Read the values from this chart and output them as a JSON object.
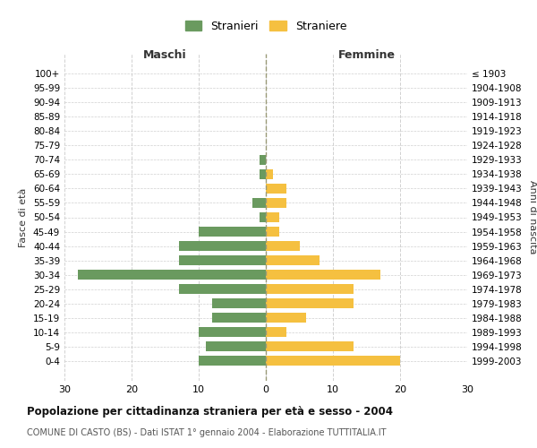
{
  "age_groups": [
    "100+",
    "95-99",
    "90-94",
    "85-89",
    "80-84",
    "75-79",
    "70-74",
    "65-69",
    "60-64",
    "55-59",
    "50-54",
    "45-49",
    "40-44",
    "35-39",
    "30-34",
    "25-29",
    "20-24",
    "15-19",
    "10-14",
    "5-9",
    "0-4"
  ],
  "birth_years": [
    "≤ 1903",
    "1904-1908",
    "1909-1913",
    "1914-1918",
    "1919-1923",
    "1924-1928",
    "1929-1933",
    "1934-1938",
    "1939-1943",
    "1944-1948",
    "1949-1953",
    "1954-1958",
    "1959-1963",
    "1964-1968",
    "1969-1973",
    "1974-1978",
    "1979-1983",
    "1984-1988",
    "1989-1993",
    "1994-1998",
    "1999-2003"
  ],
  "males": [
    0,
    0,
    0,
    0,
    0,
    0,
    1,
    1,
    0,
    2,
    1,
    10,
    13,
    13,
    28,
    13,
    8,
    8,
    10,
    9,
    10
  ],
  "females": [
    0,
    0,
    0,
    0,
    0,
    0,
    0,
    1,
    3,
    3,
    2,
    2,
    5,
    8,
    17,
    13,
    13,
    6,
    3,
    13,
    20
  ],
  "male_color": "#6a9a5f",
  "female_color": "#f5c040",
  "xlim": 30,
  "title": "Popolazione per cittadinanza straniera per età e sesso - 2004",
  "subtitle": "COMUNE DI CASTO (BS) - Dati ISTAT 1° gennaio 2004 - Elaborazione TUTTITALIA.IT",
  "xlabel_left": "Maschi",
  "xlabel_right": "Femmine",
  "ylabel_left": "Fasce di età",
  "ylabel_right": "Anni di nascita",
  "legend_male": "Stranieri",
  "legend_female": "Straniere",
  "background_color": "#ffffff",
  "grid_color": "#cccccc"
}
